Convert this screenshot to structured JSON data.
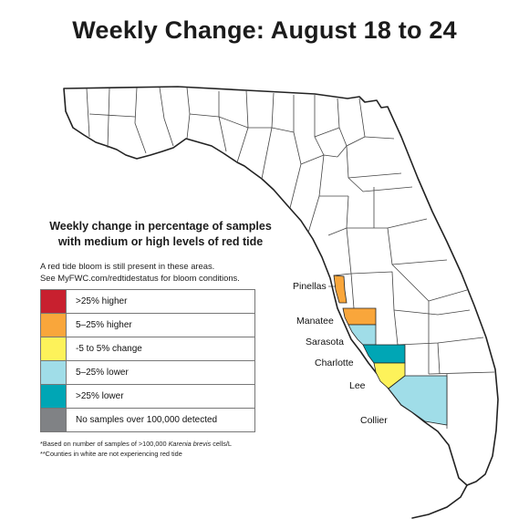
{
  "title": "Weekly Change: August 18 to 24",
  "legend": {
    "heading_line1": "Weekly change in percentage of samples",
    "heading_line2": "with medium or high levels of red tide",
    "note_line1": "A red tide bloom is still present in these areas.",
    "note_line2": "See MyFWC.com/redtidestatus for bloom conditions.",
    "items": [
      {
        "label": ">25% higher",
        "color": "#c8202f"
      },
      {
        "label": "5–25% higher",
        "color": "#f9a63b"
      },
      {
        "label": "-5 to 5% change",
        "color": "#fdf25a"
      },
      {
        "label": "5–25% lower",
        "color": "#a0dde8"
      },
      {
        "label": ">25% lower",
        "color": "#00a6b5"
      },
      {
        "label": "No samples over 100,000 detected",
        "color": "#808285"
      }
    ],
    "footnote1_prefix": "*Based on number of samples of >100,000 ",
    "footnote1_species": "Karenia brevis",
    "footnote1_suffix": " cells/L",
    "footnote2": "**Counties in white are not experiencing red tide"
  },
  "counties": [
    {
      "name": "Pinellas",
      "category": "5–25% higher"
    },
    {
      "name": "Manatee",
      "category": "5–25% higher"
    },
    {
      "name": "Sarasota",
      "category": "5–25% lower"
    },
    {
      "name": "Charlotte",
      "category": ">25% lower"
    },
    {
      "name": "Lee",
      "category": "-5 to 5% change"
    },
    {
      "name": "Collier",
      "category": "5–25% lower"
    }
  ]
}
